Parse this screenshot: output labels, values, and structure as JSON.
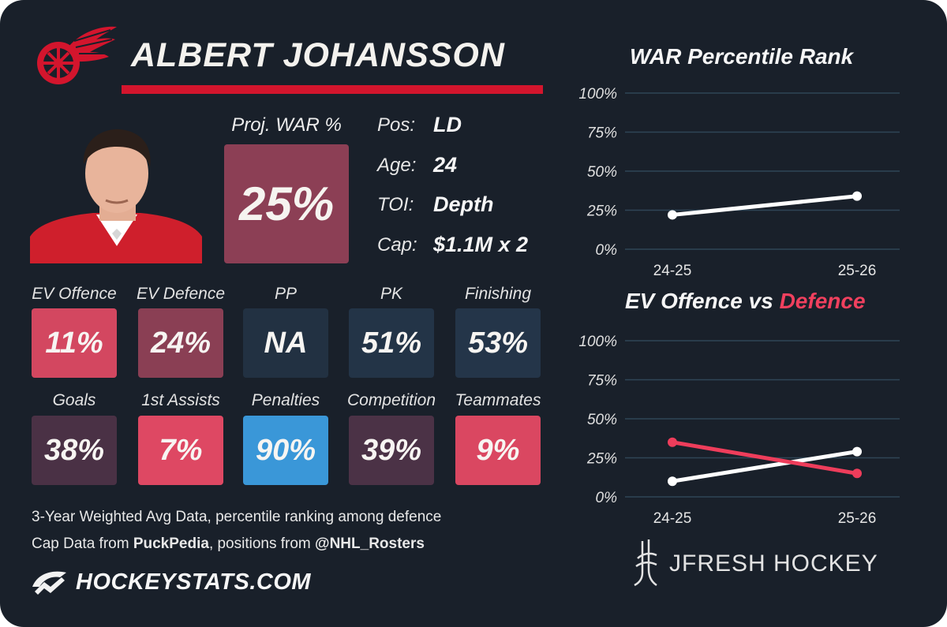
{
  "player": {
    "name": "ALBERT JOHANSSON"
  },
  "proj_war": {
    "label": "Proj. WAR %",
    "value": "25%"
  },
  "info": [
    {
      "label": "Pos:",
      "value": "LD"
    },
    {
      "label": "Age:",
      "value": "24"
    },
    {
      "label": "TOI:",
      "value": "Depth"
    },
    {
      "label": "Cap:",
      "value": "$1.1M x 2"
    }
  ],
  "stats_row1": [
    {
      "label": "EV Offence",
      "value": "11%",
      "color": "#d34760"
    },
    {
      "label": "EV Defence",
      "value": "24%",
      "color": "#8a3f54"
    },
    {
      "label": "PP",
      "value": "NA",
      "color": "#223142"
    },
    {
      "label": "PK",
      "value": "51%",
      "color": "#233447"
    },
    {
      "label": "Finishing",
      "value": "53%",
      "color": "#243549"
    }
  ],
  "stats_row2": [
    {
      "label": "Goals",
      "value": "38%",
      "color": "#4a3145"
    },
    {
      "label": "1st Assists",
      "value": "7%",
      "color": "#de4863"
    },
    {
      "label": "Penalties",
      "value": "90%",
      "color": "#3a97d8"
    },
    {
      "label": "Competition",
      "value": "39%",
      "color": "#4b3246"
    },
    {
      "label": "Teammates",
      "value": "9%",
      "color": "#da4761"
    }
  ],
  "footer": {
    "line1": "3-Year Weighted Avg Data, percentile ranking among defence",
    "line2_prefix": "Cap Data from ",
    "line2_source1": "PuckPedia",
    "line2_mid": ", positions from ",
    "line2_source2": "@NHL_Rosters",
    "hockeystats": "HOCKEYSTATS.COM",
    "jfresh": "JFRESH HOCKEY"
  },
  "colors": {
    "background": "#19202a",
    "accent_red": "#d3152d",
    "white_line": "#ffffff",
    "defence_line": "#ee3d5b",
    "grid": "#2f4556"
  },
  "icons": {
    "team_logo": "winged-wheel-logo",
    "hockeystats_logo": "hockeystats-logo-icon",
    "jfresh_logo": "jfresh-logo-icon"
  },
  "chart_data": [
    {
      "type": "line",
      "title": "WAR Percentile Rank",
      "categories": [
        "24-25",
        "25-26"
      ],
      "series": [
        {
          "values": [
            22,
            34
          ],
          "color": "#ffffff"
        }
      ],
      "ylim": [
        0,
        100
      ],
      "yticks": [
        "0%",
        "25%",
        "50%",
        "75%",
        "100%"
      ],
      "grid": true
    },
    {
      "type": "line",
      "title_part1": "EV Offence vs ",
      "title_part2": "Defence",
      "categories": [
        "24-25",
        "25-26"
      ],
      "series": [
        {
          "values": [
            10,
            29
          ],
          "color": "#ffffff"
        },
        {
          "values": [
            35,
            15
          ],
          "color": "#ee3d5b"
        }
      ],
      "ylim": [
        0,
        100
      ],
      "yticks": [
        "0%",
        "25%",
        "50%",
        "75%",
        "100%"
      ],
      "grid": true
    }
  ]
}
